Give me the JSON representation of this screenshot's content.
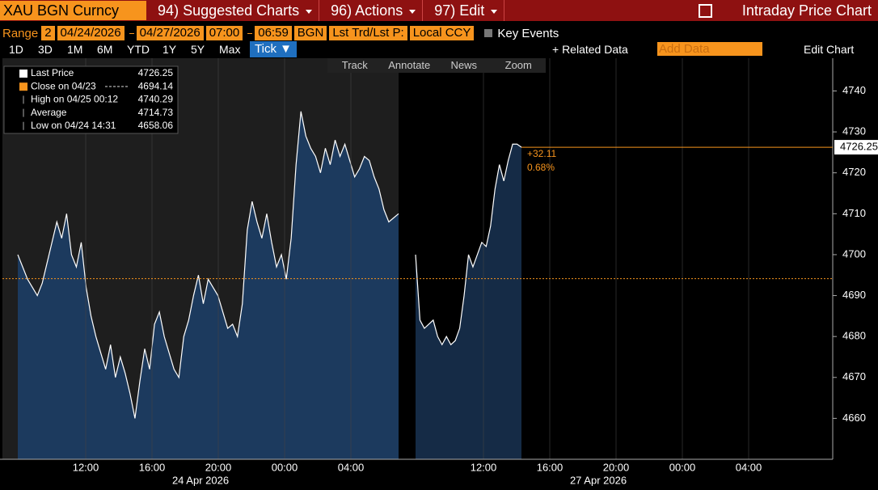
{
  "header": {
    "ticker": "XAU BGN Curncy",
    "menus": [
      "94) Suggested Charts",
      "96) Actions",
      "97) Edit"
    ],
    "title": "Intraday Price Chart"
  },
  "range_bar": {
    "label": "Range",
    "fields": [
      "2",
      "04/24/2026",
      "04/27/2026",
      "07:00",
      "06:59",
      "BGN",
      "Lst Trd/Lst P:",
      "Local CCY"
    ],
    "key_events": "Key Events"
  },
  "period_bar": {
    "periods": [
      "1D",
      "3D",
      "1M",
      "6M",
      "YTD",
      "1Y",
      "5Y",
      "Max"
    ],
    "selected": "Tick ▼",
    "related": "+ Related Data",
    "add_data": "Add Data",
    "edit": "Edit Chart"
  },
  "chart_tools": [
    "Track",
    "Annotate",
    "News",
    "Zoom"
  ],
  "chart_data": {
    "type": "line",
    "line_color": "#ffffff",
    "area_color": "#1c3a5e",
    "close_color": "#f7941d",
    "legend": [
      {
        "name": "Last Price",
        "value": 4726.25
      },
      {
        "name": "Close on 04/23",
        "value": 4694.14
      },
      {
        "name": "High on 04/25 00:12",
        "value": 4740.29
      },
      {
        "name": "Average",
        "value": 4714.73
      },
      {
        "name": "Low on 04/24 14:31",
        "value": 4658.06
      }
    ],
    "change": "+32.11",
    "change_pct": "0.68%",
    "ylim": [
      4650,
      4748
    ],
    "yticks": [
      4660,
      4670,
      4680,
      4690,
      4700,
      4710,
      4720,
      4730,
      4740
    ],
    "days": [
      {
        "label": "24 Apr 2026",
        "xticks": [
          "12:00",
          "16:00",
          "20:00",
          "00:00",
          "04:00"
        ],
        "values": [
          4700,
          4697,
          4694,
          4692,
          4690,
          4693,
          4698,
          4703,
          4708,
          4704,
          4710,
          4700,
          4697,
          4703,
          4692,
          4685,
          4680,
          4676,
          4672,
          4678,
          4670,
          4675,
          4671,
          4666,
          4660,
          4669,
          4677,
          4672,
          4683,
          4686,
          4680,
          4676,
          4672,
          4670,
          4680,
          4684,
          4690,
          4695,
          4688,
          4694,
          4692,
          4690,
          4686,
          4682,
          4683,
          4680,
          4688,
          4706,
          4713,
          4708,
          4704,
          4710,
          4703,
          4697,
          4700,
          4694,
          4704,
          4722,
          4735,
          4729,
          4726,
          4724,
          4720,
          4726,
          4722,
          4728,
          4724,
          4727,
          4723,
          4719,
          4721,
          4724,
          4723,
          4719,
          4716,
          4711,
          4708,
          4709,
          4710
        ]
      },
      {
        "label": "27 Apr 2026",
        "xticks": [
          "12:00",
          "16:00",
          "20:00",
          "00:00",
          "04:00"
        ],
        "values": [
          4700,
          4684,
          4682,
          4683,
          4684,
          4680,
          4678,
          4680,
          4678,
          4679,
          4682,
          4690,
          4700,
          4697,
          4700,
          4703,
          4702,
          4707,
          4716,
          4722,
          4718,
          4723,
          4727,
          4727,
          4726.25
        ]
      }
    ]
  }
}
